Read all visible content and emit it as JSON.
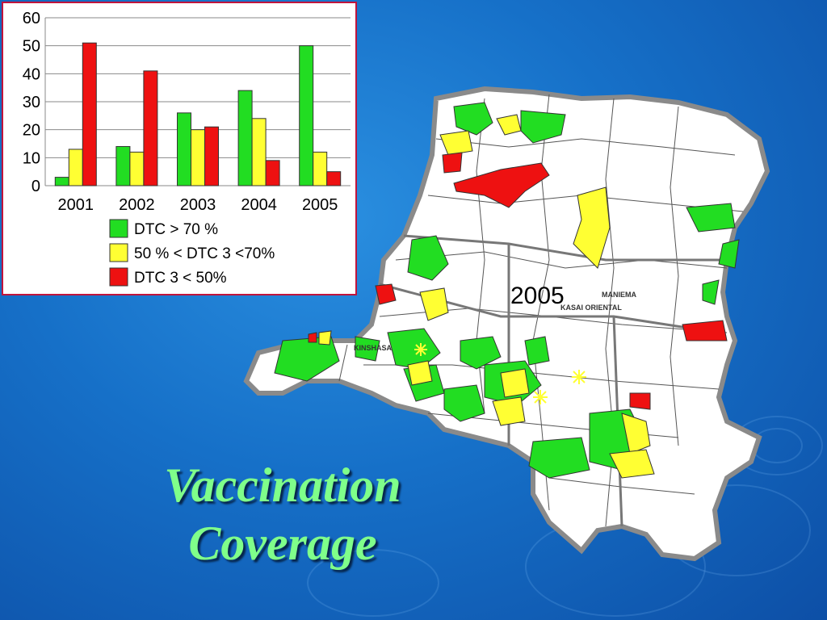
{
  "colors": {
    "green": "#22dd22",
    "yellow": "#ffff33",
    "red": "#ee1111",
    "title": "#7fff8a",
    "background": "#1670c8"
  },
  "chart_data": {
    "type": "bar",
    "categories": [
      "2001",
      "2002",
      "2003",
      "2004",
      "2005"
    ],
    "series": [
      {
        "name": "DTC > 70 %",
        "color": "#22dd22",
        "values": [
          3,
          14,
          26,
          34,
          50
        ]
      },
      {
        "name": "50 % < DTC 3 <70%",
        "color": "#ffff33",
        "values": [
          13,
          12,
          20,
          24,
          12
        ]
      },
      {
        "name": "DTC 3 < 50%",
        "color": "#ee1111",
        "values": [
          51,
          41,
          21,
          9,
          5
        ]
      }
    ],
    "ylim": [
      0,
      60
    ],
    "yticks": [
      "0",
      "10",
      "20",
      "30",
      "40",
      "50",
      "60"
    ],
    "grid": true,
    "legend_position": "bottom"
  },
  "map": {
    "year_label": "2005",
    "region_labels": [
      "KINSHASA",
      "KASAI ORIENTAL",
      "MANIEMA"
    ]
  },
  "slide": {
    "title_line1": "Vaccination",
    "title_line2": "Coverage"
  }
}
